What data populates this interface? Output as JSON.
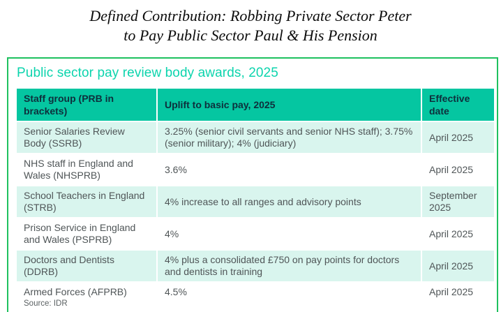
{
  "page_title": {
    "line1": "Defined Contribution: Robbing Private Sector Peter",
    "line2": "to Pay Public Sector Paul & His Pension"
  },
  "card": {
    "title": "Public sector pay review body awards, 2025",
    "source": "Source: IDR"
  },
  "chart_data": {
    "type": "table",
    "title": "Public sector pay review body awards, 2025",
    "columns": [
      "Staff group (PRB in brackets)",
      "Uplift to basic pay, 2025",
      "Effective date"
    ],
    "rows": [
      [
        "Senior Salaries Review Body (SSRB)",
        "3.25% (senior civil servants and senior NHS staff); 3.75% (senior military); 4% (judiciary)",
        "April 2025"
      ],
      [
        "NHS staff in England and Wales (NHSPRB)",
        "3.6%",
        "April 2025"
      ],
      [
        "School Teachers in England (STRB)",
        "4% increase to all ranges and advisory points",
        "September 2025"
      ],
      [
        "Prison Service in England and Wales (PSPRB)",
        "4%",
        "April 2025"
      ],
      [
        "Doctors and Dentists (DDRB)",
        "4% plus a consolidated £750 on pay points for doctors and dentists in training",
        "April 2025"
      ],
      [
        "Armed Forces (AFPRB)",
        "4.5%",
        "April 2025"
      ]
    ],
    "source": "Source: IDR"
  },
  "colors": {
    "card_border_green": "#1ec15f",
    "card_title_teal": "#0cd4ad",
    "header_bg_teal": "#05c6a1",
    "header_text": "#0e2f3c",
    "row_alt_mint": "#d9f5ee",
    "body_text": "#4f5557"
  }
}
